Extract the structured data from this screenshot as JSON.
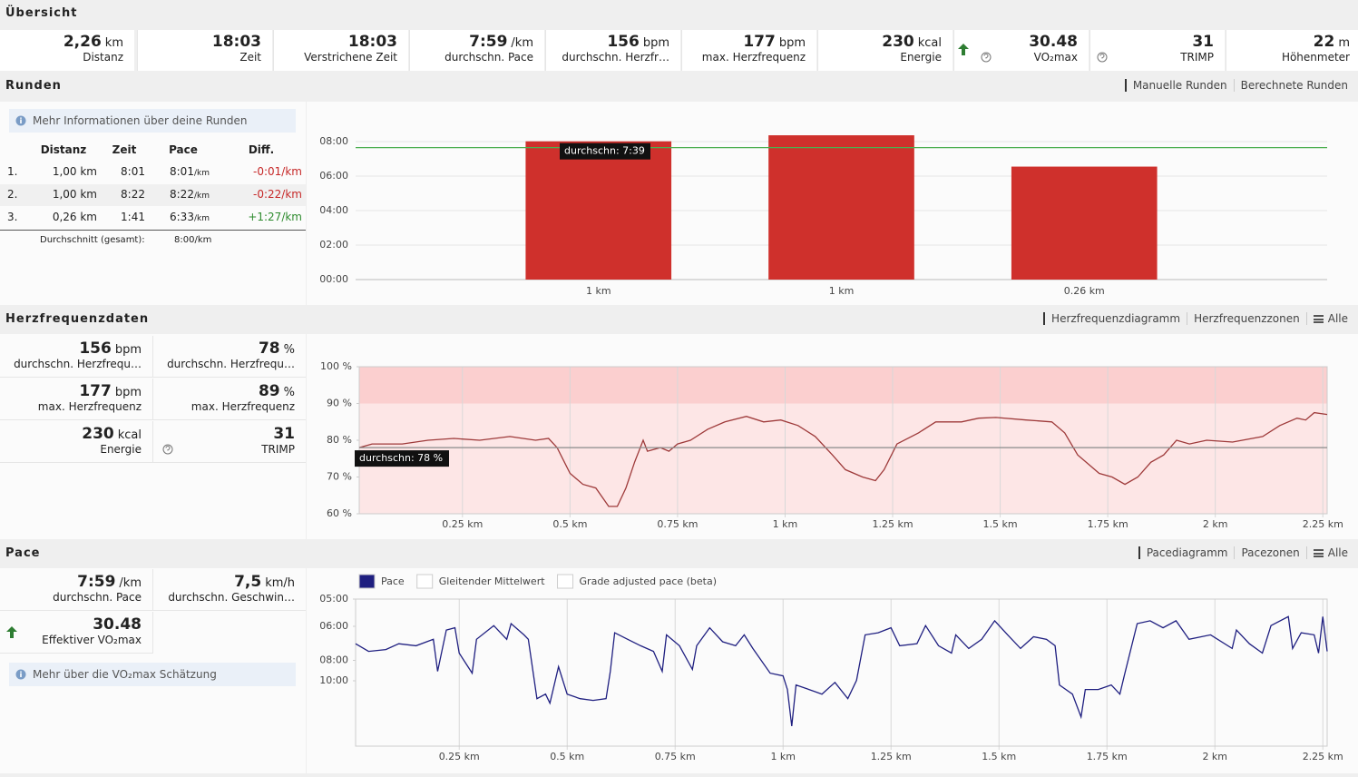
{
  "overview": {
    "title": "Übersicht",
    "stats": [
      {
        "value": "2,26",
        "unit": "km",
        "label": "Distanz"
      },
      {
        "value": "18:03",
        "label": "Zeit"
      },
      {
        "value": "18:03",
        "label": "Verstrichene Zeit"
      },
      {
        "value": "7:59",
        "unit": "/km",
        "label": "durchschn. Pace"
      },
      {
        "value": "156",
        "unit": "bpm",
        "label": "durchschn. Herzfr…"
      },
      {
        "value": "177",
        "unit": "bpm",
        "label": "max. Herzfrequenz"
      },
      {
        "value": "230",
        "unit": "kcal",
        "label": "Energie"
      },
      {
        "value": "30.48",
        "label": "VO₂max"
      },
      {
        "value": "31",
        "label": "TRIMP"
      },
      {
        "value": "22",
        "unit": "m",
        "label": "Höhenmeter"
      }
    ]
  },
  "laps": {
    "title": "Runden",
    "tabs": [
      {
        "label": "Manuelle Runden",
        "active": true
      },
      {
        "label": "Berechnete Runden"
      }
    ],
    "info": "Mehr Informationen über deine Runden",
    "table": {
      "header": [
        "Distanz",
        "Zeit",
        "Pace",
        "Diff."
      ],
      "rows": [
        {
          "no": "1.",
          "distance": "1,00 km",
          "time": "8:01",
          "pace": "8:01",
          "pace_unit": "/km",
          "diff": "-0:01/km",
          "diff_color": "#c62828"
        },
        {
          "no": "2.",
          "distance": "1,00 km",
          "time": "8:22",
          "pace": "8:22",
          "pace_unit": "/km",
          "diff": "-0:22/km",
          "diff_color": "#c62828"
        },
        {
          "no": "3.",
          "distance": "0,26 km",
          "time": "1:41",
          "pace": "6:33",
          "pace_unit": "/km",
          "diff": "+1:27/km",
          "diff_color": "#2e8b2e"
        }
      ],
      "average_label": "Durchschnitt (gesamt):",
      "average_value": "8:00/km"
    }
  },
  "heart_rate": {
    "title": "Herzfrequenzdaten",
    "tabs": [
      {
        "label": "Herzfrequenzdiagramm",
        "active": true
      },
      {
        "label": "Herzfrequenzzonen"
      },
      {
        "label": "Alle",
        "icon": "menu"
      }
    ],
    "stats": [
      {
        "value": "156",
        "unit": "bpm",
        "label": "durchschn. Herzfrequ…"
      },
      {
        "value": "78",
        "unit": "%",
        "label": "durchschn. Herzfrequ…"
      },
      {
        "value": "177",
        "unit": "bpm",
        "label": "max. Herzfrequenz"
      },
      {
        "value": "89",
        "unit": "%",
        "label": "max. Herzfrequenz"
      },
      {
        "value": "230",
        "unit": "kcal",
        "label": "Energie"
      },
      {
        "value": "31",
        "label": "TRIMP"
      }
    ]
  },
  "pace": {
    "title": "Pace",
    "tabs": [
      {
        "label": "Pacediagramm",
        "active": true
      },
      {
        "label": "Pacezonen"
      },
      {
        "label": "Alle",
        "icon": "menu"
      }
    ],
    "stats": [
      {
        "value": "7:59",
        "unit": "/km",
        "label": "durchschn. Pace"
      },
      {
        "value": "7,5",
        "unit": "km/h",
        "label": "durchschn. Geschwin…"
      },
      {
        "value": "30.48",
        "label": "Effektiver VO₂max"
      }
    ],
    "info": "Mehr über die VO₂max Schätzung"
  },
  "chart_data": [
    {
      "type": "bar",
      "categories": [
        "1 km",
        "1 km",
        "0.26 km"
      ],
      "values": [
        481,
        502,
        393
      ],
      "color": "#cf302c",
      "ylim": [
        0,
        600
      ],
      "yticks": [
        {
          "value": 0,
          "label": "00:00"
        },
        {
          "value": 120,
          "label": "02:00"
        },
        {
          "value": 240,
          "label": "04:00"
        },
        {
          "value": 360,
          "label": "06:00"
        },
        {
          "value": 480,
          "label": "08:00"
        }
      ],
      "grid": true,
      "average": 459,
      "average_label": "durchschn: 7:39",
      "average_color": "#4caf50"
    },
    {
      "type": "line",
      "xlim": [
        0.01,
        2.26
      ],
      "ylim": [
        60,
        100
      ],
      "xticks": [
        {
          "value": 0.25,
          "label": "0.25 km"
        },
        {
          "value": 0.5,
          "label": "0.5 km"
        },
        {
          "value": 0.75,
          "label": "0.75 km"
        },
        {
          "value": 1,
          "label": "1 km"
        },
        {
          "value": 1.25,
          "label": "1.25 km"
        },
        {
          "value": 1.5,
          "label": "1.5 km"
        },
        {
          "value": 1.75,
          "label": "1.75 km"
        },
        {
          "value": 2,
          "label": "2 km"
        },
        {
          "value": 2.25,
          "label": "2.25 km"
        }
      ],
      "yticks": [
        {
          "value": 60,
          "label": "60 %"
        },
        {
          "value": 70,
          "label": "70 %"
        },
        {
          "value": 80,
          "label": "80 %"
        },
        {
          "value": 90,
          "label": "90 %"
        },
        {
          "value": 100,
          "label": "100 %"
        }
      ],
      "grid": true,
      "zones": [
        {
          "from": 90,
          "to": 100,
          "color": "#fbcfcf"
        },
        {
          "from": 60,
          "to": 90,
          "color": "#fde6e6"
        }
      ],
      "average": 78,
      "average_label": "durchschn: 78 %",
      "average_color": "#8a8a8a",
      "series": [
        {
          "color": "#9e3a3a",
          "x": [
            0.01,
            0.04,
            0.11,
            0.17,
            0.23,
            0.29,
            0.36,
            0.42,
            0.45,
            0.47,
            0.5,
            0.53,
            0.56,
            0.59,
            0.61,
            0.63,
            0.65,
            0.67,
            0.68,
            0.71,
            0.73,
            0.75,
            0.78,
            0.82,
            0.86,
            0.91,
            0.95,
            0.99,
            1.03,
            1.07,
            1.11,
            1.14,
            1.18,
            1.21,
            1.23,
            1.26,
            1.31,
            1.35,
            1.41,
            1.45,
            1.49,
            1.56,
            1.62,
            1.65,
            1.68,
            1.73,
            1.76,
            1.79,
            1.82,
            1.85,
            1.88,
            1.91,
            1.94,
            1.98,
            2.04,
            2.11,
            2.15,
            2.19,
            2.21,
            2.23,
            2.26
          ],
          "values": [
            78,
            79,
            79,
            80,
            80.5,
            80,
            81,
            80,
            80.5,
            78,
            71,
            68,
            67,
            62,
            62,
            67,
            74,
            80,
            77,
            78,
            77,
            79,
            80,
            83,
            85,
            86.5,
            85,
            85.5,
            84,
            81,
            76,
            72,
            70,
            69,
            72,
            79,
            82,
            85,
            85,
            86,
            86.2,
            85.5,
            85,
            82,
            76,
            71,
            70,
            68,
            70,
            74,
            76,
            80,
            79,
            80,
            79.5,
            81,
            84,
            86,
            85.5,
            87.5,
            87
          ]
        }
      ]
    },
    {
      "type": "line",
      "scale": "reciprocal",
      "xlim": [
        0.01,
        2.26
      ],
      "ylim": [
        300,
        3000
      ],
      "xticks": [
        {
          "value": 0.25,
          "label": "0.25 km"
        },
        {
          "value": 0.5,
          "label": "0.5 km"
        },
        {
          "value": 0.75,
          "label": "0.75 km"
        },
        {
          "value": 1,
          "label": "1 km"
        },
        {
          "value": 1.25,
          "label": "1.25 km"
        },
        {
          "value": 1.5,
          "label": "1.5 km"
        },
        {
          "value": 1.75,
          "label": "1.75 km"
        },
        {
          "value": 2,
          "label": "2 km"
        },
        {
          "value": 2.25,
          "label": "2.25 km"
        }
      ],
      "yticks": [
        {
          "value": 300,
          "label": "05:00"
        },
        {
          "value": 360,
          "label": "06:00"
        },
        {
          "value": 480,
          "label": "08:00"
        },
        {
          "value": 600,
          "label": "10:00"
        }
      ],
      "grid": true,
      "inactive_series": [
        "Gleitender Mittelwert",
        "Grade adjusted pace (beta)"
      ],
      "series": [
        {
          "name": "Pace",
          "color": "#1f1f80",
          "x": [
            0.01,
            0.04,
            0.08,
            0.11,
            0.15,
            0.19,
            0.2,
            0.22,
            0.24,
            0.25,
            0.28,
            0.29,
            0.33,
            0.36,
            0.37,
            0.4,
            0.41,
            0.43,
            0.45,
            0.46,
            0.48,
            0.5,
            0.53,
            0.56,
            0.59,
            0.6,
            0.61,
            0.64,
            0.67,
            0.7,
            0.72,
            0.73,
            0.76,
            0.79,
            0.8,
            0.83,
            0.86,
            0.89,
            0.91,
            0.93,
            0.97,
            1,
            1.01,
            1.02,
            1.03,
            1.06,
            1.09,
            1.12,
            1.15,
            1.17,
            1.19,
            1.22,
            1.25,
            1.27,
            1.31,
            1.33,
            1.36,
            1.39,
            1.4,
            1.43,
            1.46,
            1.49,
            1.52,
            1.55,
            1.58,
            1.61,
            1.63,
            1.64,
            1.67,
            1.69,
            1.7,
            1.73,
            1.76,
            1.78,
            1.79,
            1.82,
            1.85,
            1.88,
            1.91,
            1.94,
            1.99,
            2.04,
            2.05,
            2.08,
            2.11,
            2.13,
            2.17,
            2.18,
            2.2,
            2.23,
            2.24,
            2.25,
            2.26
          ],
          "values": [
            413,
            441,
            434,
            413,
            420,
            398,
            538,
            370,
            364,
            448,
            549,
            398,
            358,
            398,
            353,
            384,
            398,
            768,
            717,
            827,
            512,
            717,
            768,
            790,
            768,
            538,
            378,
            398,
            420,
            441,
            538,
            384,
            420,
            527,
            420,
            364,
            406,
            420,
            384,
            430,
            549,
            566,
            672,
            1346,
            632,
            672,
            717,
            612,
            768,
            597,
            384,
            378,
            364,
            420,
            413,
            358,
            420,
            448,
            384,
            430,
            398,
            346,
            384,
            430,
            390,
            398,
            420,
            632,
            717,
            1076,
            672,
            672,
            632,
            717,
            566,
            353,
            346,
            364,
            346,
            398,
            384,
            430,
            370,
            413,
            448,
            358,
            336,
            430,
            378,
            384,
            448,
            336,
            441
          ]
        }
      ]
    }
  ]
}
